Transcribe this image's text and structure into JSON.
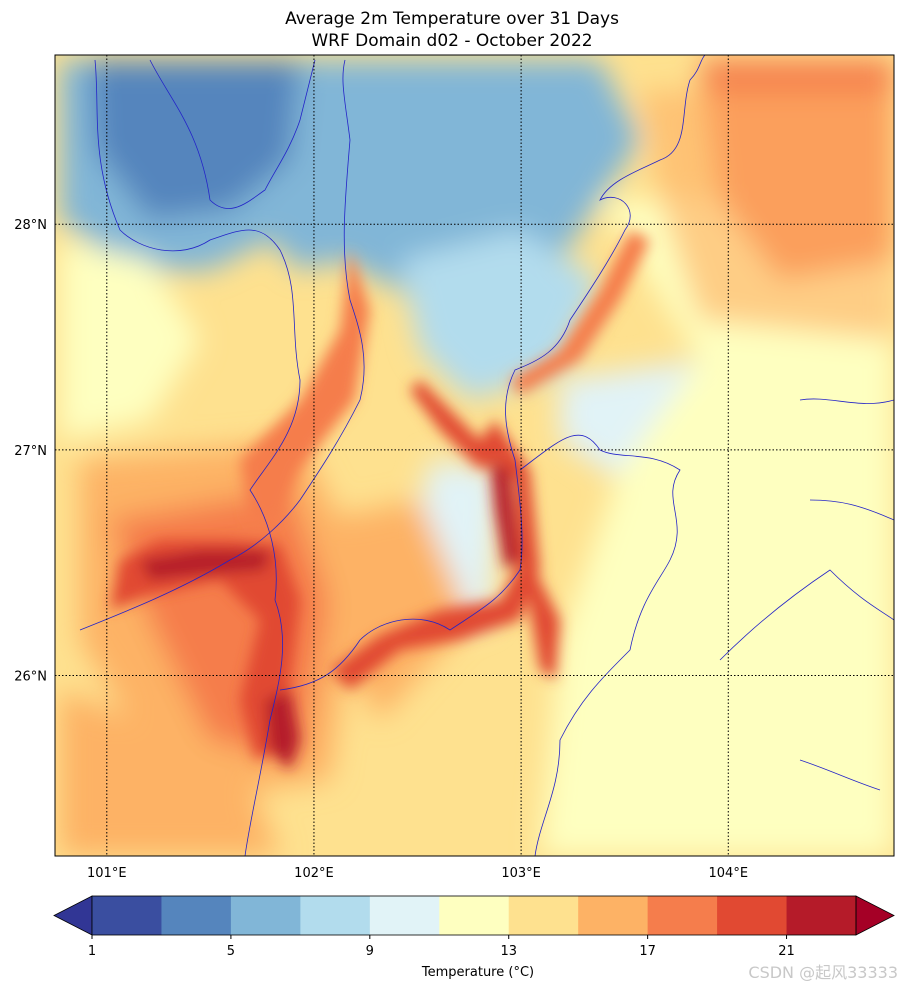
{
  "chart_data": {
    "type": "heatmap",
    "title": "Average 2m Temperature over 31 Days",
    "subtitle": "WRF Domain d02 - October 2022",
    "x_ticks": [
      "101°E",
      "102°E",
      "103°E",
      "104°E"
    ],
    "y_ticks": [
      "28°N",
      "27°N",
      "26°N"
    ],
    "xlim": [
      100.75,
      104.8
    ],
    "ylim": [
      25.2,
      28.75
    ],
    "grid": true,
    "colormap": "RdYlBu_r",
    "colorbar": {
      "label": "Temperature (°C)",
      "ticks": [
        "1",
        "5",
        "9",
        "13",
        "17",
        "21"
      ],
      "levels": [
        1,
        3,
        5,
        7,
        9,
        11,
        13,
        15,
        17,
        19,
        21,
        23
      ],
      "extend": "both",
      "colors": [
        "#313695",
        "#3a4ea0",
        "#5585bd",
        "#81b6d7",
        "#b2dced",
        "#e1f3f7",
        "#feffc0",
        "#fee18f",
        "#fdb265",
        "#f57d4c",
        "#e14932",
        "#b51b29",
        "#a50026"
      ]
    },
    "regions": [
      {
        "name": "warm-south-west",
        "temp": 20
      },
      {
        "name": "warm-north-east",
        "temp": 18
      },
      {
        "name": "cool-north",
        "temp": 6
      },
      {
        "name": "valley-river",
        "temp": 22
      }
    ]
  },
  "watermark": "CSDN @起风33333"
}
